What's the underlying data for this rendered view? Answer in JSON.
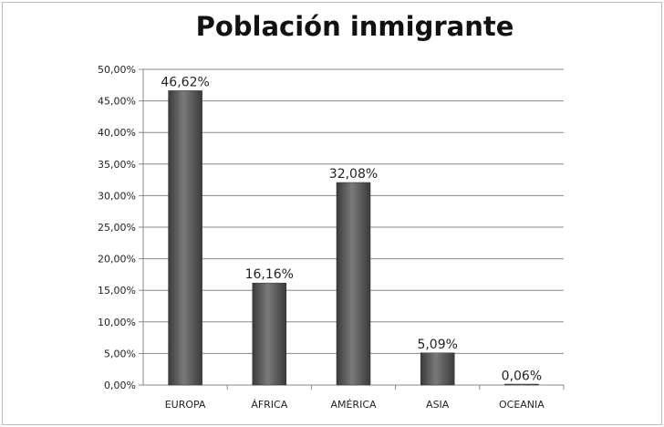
{
  "chart_data": {
    "type": "bar",
    "title": "Población inmigrante",
    "xlabel": "",
    "ylabel": "",
    "categories": [
      "EUROPA",
      "ÁFRICA",
      "AMÉRICA",
      "ASIA",
      "OCEANIA"
    ],
    "values": [
      46.62,
      16.16,
      32.08,
      5.09,
      0.06
    ],
    "data_labels": [
      "46,62%",
      "16,16%",
      "32,08%",
      "5,09%",
      "0,06%"
    ],
    "ylim": [
      0,
      50
    ],
    "yticks": [
      0,
      5,
      10,
      15,
      20,
      25,
      30,
      35,
      40,
      45,
      50
    ],
    "ytick_labels": [
      "0,00%",
      "5,00%",
      "10,00%",
      "15,00%",
      "20,00%",
      "25,00%",
      "30,00%",
      "35,00%",
      "40,00%",
      "45,00%",
      "50,00%"
    ],
    "grid": true,
    "legend": "none",
    "colors": {
      "bar": "#4a4a4a",
      "bar_highlight": "#7a7a7a",
      "grid": "#888888"
    }
  }
}
